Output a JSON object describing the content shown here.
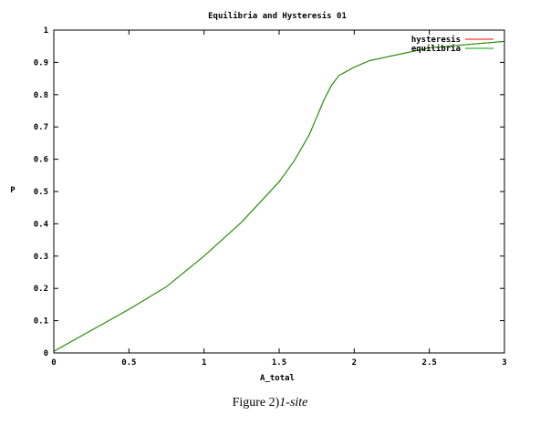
{
  "chart_data": {
    "type": "line",
    "title": "Equilibria and Hysteresis 01",
    "xlabel": "A_total",
    "ylabel": "P",
    "xlim": [
      0,
      3
    ],
    "ylim": [
      0,
      1
    ],
    "x_ticks": [
      "0",
      "0.5",
      "1",
      "1.5",
      "2",
      "2.5",
      "3"
    ],
    "y_ticks": [
      "0",
      "0.1",
      "0.2",
      "0.3",
      "0.4",
      "0.5",
      "0.6",
      "0.7",
      "0.8",
      "0.9",
      "1"
    ],
    "legend_position": "top-right",
    "grid": false,
    "series": [
      {
        "name": "hysteresis",
        "color": "#ff0000",
        "x": [
          0,
          0.25,
          0.5,
          0.75,
          1.0,
          1.25,
          1.5,
          1.6,
          1.7,
          1.75,
          1.8,
          1.85,
          1.9,
          2.0,
          2.1,
          2.25,
          2.5,
          2.75,
          3.0
        ],
        "y": [
          0.005,
          0.07,
          0.135,
          0.205,
          0.3,
          0.405,
          0.53,
          0.595,
          0.675,
          0.73,
          0.785,
          0.83,
          0.86,
          0.885,
          0.905,
          0.92,
          0.945,
          0.955,
          0.965
        ]
      },
      {
        "name": "equilibria",
        "color": "#00a000",
        "x": [
          0,
          0.25,
          0.5,
          0.75,
          1.0,
          1.25,
          1.5,
          1.6,
          1.7,
          1.75,
          1.8,
          1.85,
          1.9,
          2.0,
          2.1,
          2.25,
          2.5,
          2.75,
          3.0
        ],
        "y": [
          0.005,
          0.07,
          0.135,
          0.205,
          0.3,
          0.405,
          0.53,
          0.595,
          0.675,
          0.73,
          0.785,
          0.83,
          0.86,
          0.885,
          0.905,
          0.92,
          0.945,
          0.955,
          0.965
        ]
      }
    ]
  },
  "caption": {
    "prefix": "Figure 2)",
    "italic": "1-site"
  }
}
